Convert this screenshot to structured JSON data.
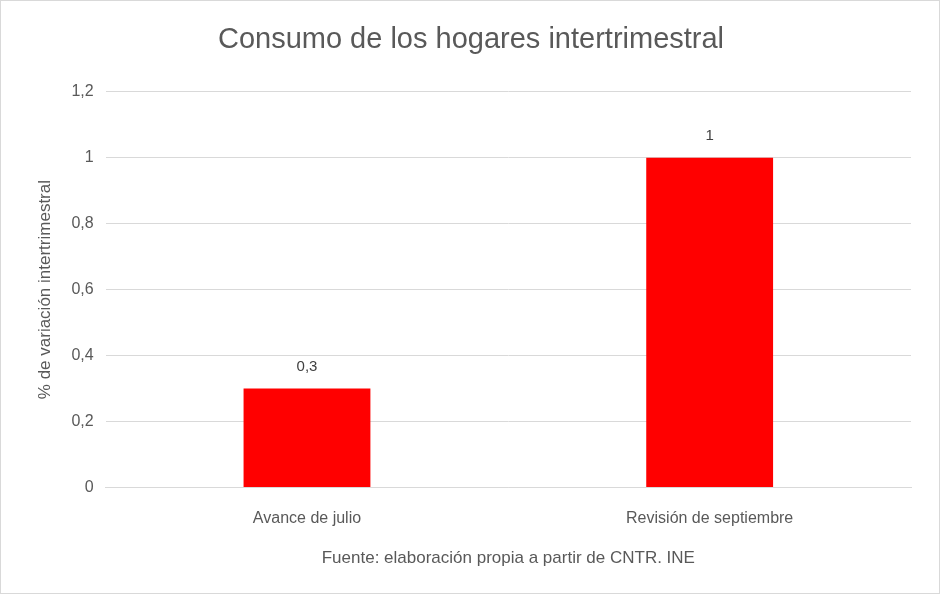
{
  "chart_data": {
    "type": "bar",
    "title": "Consumo de los hogares intertrimestral",
    "y_label": "% de variación intertrimestral",
    "x_label": "Fuente: elaboración propia a partir de CNTR. INE",
    "categories": [
      "Avance de julio",
      "Revisión de septiembre"
    ],
    "values": [
      0.3,
      1
    ],
    "value_labels": [
      "0,3",
      "1"
    ],
    "color": "#ff0000",
    "ylim": [
      0,
      1.2
    ],
    "yticks": [
      0,
      {
        "value": 0.2,
        "label": "0,2"
      },
      {
        "value": 0.4,
        "label": "0,4"
      },
      {
        "value": 0.6,
        "label": "0,6"
      },
      {
        "value": 0.8,
        "label": "0,8"
      },
      1,
      {
        "value": 1.2,
        "label": "1,2"
      }
    ],
    "grid": true,
    "data_labels": true
  }
}
